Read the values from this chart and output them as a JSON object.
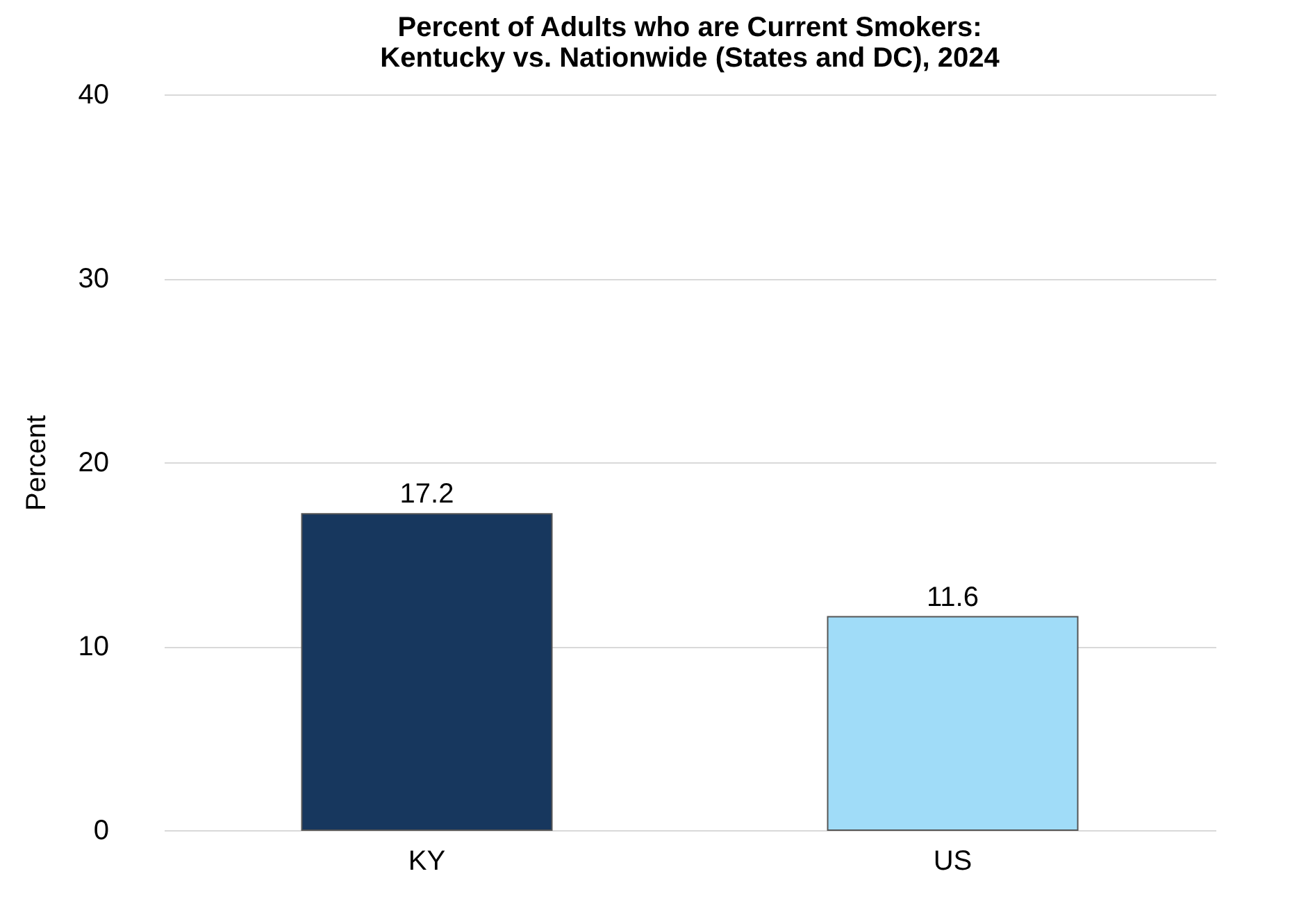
{
  "chart_data": {
    "type": "bar",
    "title": "Percent of Adults who are Current Smokers:\nKentucky vs. Nationwide (States and DC), 2024",
    "ylabel": "Percent",
    "categories": [
      "KY",
      "US"
    ],
    "values": [
      17.2,
      11.6
    ],
    "colors": [
      "#17375e",
      "#a0dcf8"
    ],
    "ylim": [
      0,
      40
    ],
    "yticks": [
      0,
      10,
      20,
      30,
      40
    ],
    "grid": "y",
    "data_labels": true
  }
}
